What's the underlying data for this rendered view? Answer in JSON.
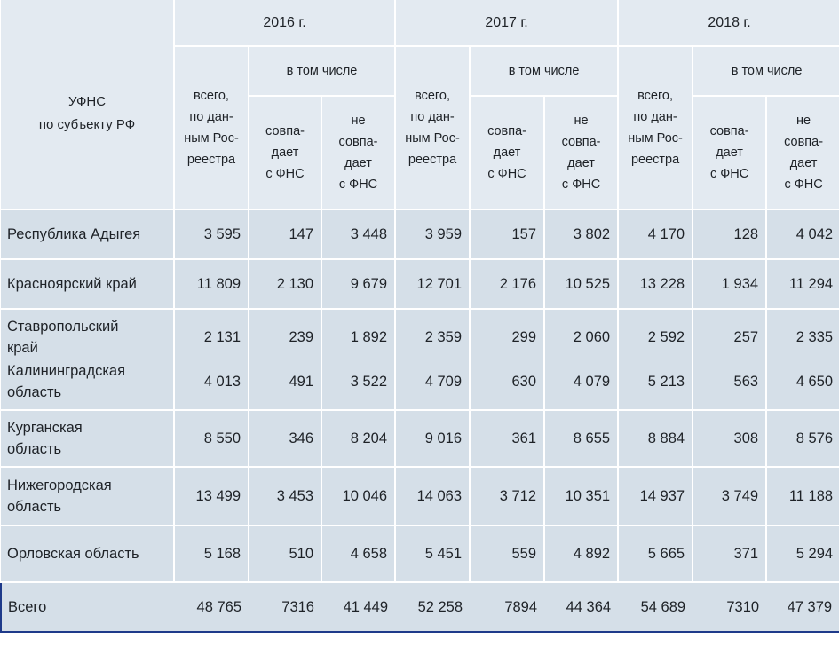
{
  "header": {
    "region_col": [
      "УФНС",
      "по субъекту РФ"
    ],
    "years": [
      "2016 г.",
      "2017 г.",
      "2018 г."
    ],
    "including": "в том числе",
    "total_col": [
      "всего,",
      "по дан-",
      "ным Рос-",
      "реестра"
    ],
    "match_col": [
      "совпа-",
      "дает",
      "с ФНС"
    ],
    "nomatch_col": [
      "не",
      "совпа-",
      "дает",
      "с ФНС"
    ]
  },
  "rows": [
    {
      "region": [
        "Республика Адыгея"
      ],
      "values": [
        "3 595",
        "147",
        "3 448",
        "3 959",
        "157",
        "3 802",
        "4 170",
        "128",
        "4 042"
      ]
    },
    {
      "region": [
        "Красноярский край"
      ],
      "values": [
        "11 809",
        "2 130",
        "9 679",
        "12 701",
        "2 176",
        "10 525",
        "13 228",
        "1 934",
        "11 294"
      ]
    },
    {
      "region": [
        "Ставропольский",
        "край"
      ],
      "values": [
        "2 131",
        "239",
        "1 892",
        "2 359",
        "299",
        "2 060",
        "2 592",
        "257",
        "2 335"
      ]
    },
    {
      "region": [
        "Калининградская",
        "область"
      ],
      "values": [
        "4 013",
        "491",
        "3 522",
        "4 709",
        "630",
        "4 079",
        "5 213",
        "563",
        "4 650"
      ]
    },
    {
      "region": [
        "Курганская",
        "область"
      ],
      "values": [
        "8 550",
        "346",
        "8 204",
        "9 016",
        "361",
        "8 655",
        "8 884",
        "308",
        "8 576"
      ]
    },
    {
      "region": [
        "Нижегородская",
        "область"
      ],
      "values": [
        "13 499",
        "3 453",
        "10 046",
        "14 063",
        "3 712",
        "10 351",
        "14 937",
        "3 749",
        "11 188"
      ]
    },
    {
      "region": [
        "Орловская область"
      ],
      "values": [
        "5 168",
        "510",
        "4 658",
        "5 451",
        "559",
        "4 892",
        "5 665",
        "371",
        "5 294"
      ]
    }
  ],
  "total": {
    "region": "Всего",
    "values": [
      "48 765",
      "7316",
      "41 449",
      "52 258",
      "7894",
      "44 364",
      "54 689",
      "7310",
      "47 379"
    ]
  }
}
